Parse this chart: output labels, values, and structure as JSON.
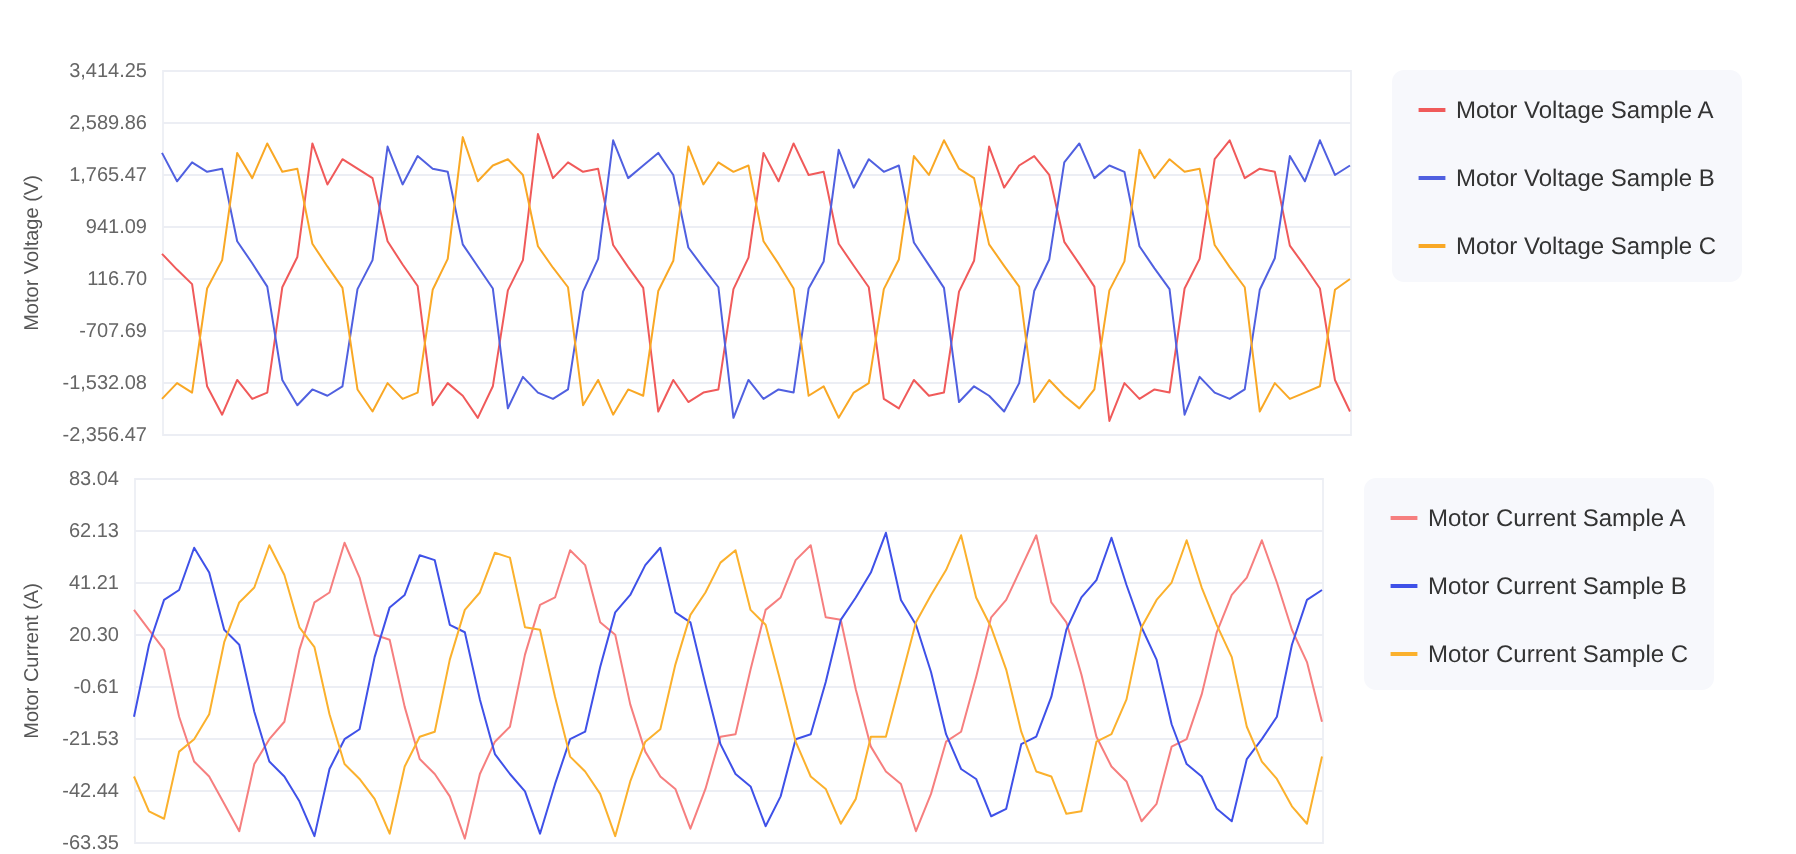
{
  "chart_data": [
    {
      "type": "line",
      "ylabel": "Motor Voltage (V)",
      "categories": [
        null,
        null,
        null,
        null,
        null,
        null,
        null,
        null,
        null,
        null,
        null,
        null,
        null,
        null,
        null,
        null,
        null,
        null,
        null,
        null,
        null,
        null,
        null,
        null,
        null,
        null,
        null,
        null,
        null,
        null,
        null,
        null,
        null,
        null,
        null,
        null,
        null,
        null,
        null,
        null,
        null,
        null,
        null,
        null,
        null,
        null,
        null,
        null,
        null,
        null,
        null,
        null,
        null,
        null,
        null,
        null,
        null,
        null,
        null,
        null,
        null,
        null,
        null,
        null,
        null,
        null,
        null,
        null,
        null,
        null,
        null,
        null,
        null,
        null,
        null,
        null,
        null,
        null,
        null,
        null
      ],
      "ylim": [
        -2356.47,
        3414.25
      ],
      "yticks": [
        {
          "value": -2356.47,
          "label": "-2,356.47"
        },
        {
          "value": -1532.08,
          "label": "-1,532.08"
        },
        -707.69,
        {
          "value": 116.7,
          "label": "116.70"
        },
        941.09,
        {
          "value": 1765.47,
          "label": "1,765.47"
        },
        {
          "value": 2589.86,
          "label": "2,589.86"
        },
        {
          "value": 3414.25,
          "label": "3,414.25"
        }
      ],
      "grid": "y",
      "legend": "right",
      "tick_labels": "y",
      "series": [
        {
          "name": "Motor Voltage Sample A",
          "color": "#f05a5a",
          "values": [
            500,
            250,
            20,
            -1600,
            -2050,
            -1500,
            -1800,
            -1700,
            -30,
            450,
            2250,
            1600,
            2000,
            1850,
            1700,
            700,
            330,
            -10,
            -1900,
            -1550,
            -1750,
            -2100,
            -1600,
            -80,
            400,
            2400,
            1700,
            1950,
            1800,
            1850,
            640,
            290,
            -40,
            -2000,
            -1500,
            -1850,
            -1700,
            -1650,
            -60,
            440,
            2100,
            1650,
            2250,
            1750,
            1800,
            660,
            310,
            -30,
            -1800,
            -1950,
            -1500,
            -1750,
            -1700,
            -100,
            390,
            2200,
            1550,
            1900,
            2050,
            1750,
            690,
            340,
            -20,
            -2150,
            -1550,
            -1800,
            -1650,
            -1700,
            -50,
            420,
            2000,
            2300,
            1700,
            1850,
            1800,
            630,
            300,
            -50,
            -1500,
            -2000
          ]
        },
        {
          "name": "Motor Voltage Sample B",
          "color": "#5060e0",
          "values": [
            2100,
            1650,
            1950,
            1800,
            1850,
            700,
            350,
            -20,
            -1500,
            -1900,
            -1650,
            -1750,
            -1600,
            -60,
            400,
            2200,
            1600,
            2050,
            1850,
            1800,
            650,
            300,
            -50,
            -1950,
            -1450,
            -1700,
            -1800,
            -1650,
            -100,
            420,
            2300,
            1700,
            1900,
            2100,
            1750,
            600,
            280,
            -30,
            -2100,
            -1500,
            -1800,
            -1650,
            -1700,
            -50,
            380,
            2150,
            1550,
            2000,
            1800,
            1900,
            680,
            320,
            -40,
            -1850,
            -1600,
            -1750,
            -2000,
            -1550,
            -90,
            410,
            1950,
            2250,
            1700,
            1900,
            1800,
            620,
            270,
            -60,
            -2050,
            -1450,
            -1700,
            -1800,
            -1650,
            -70,
            430,
            2050,
            1650,
            2300,
            1750,
            1900
          ]
        },
        {
          "name": "Motor Voltage Sample C",
          "color": "#f9a825",
          "values": [
            -1800,
            -1550,
            -1700,
            -50,
            400,
            2100,
            1700,
            2250,
            1800,
            1850,
            660,
            300,
            -40,
            -1650,
            -2000,
            -1550,
            -1800,
            -1700,
            -70,
            420,
            2350,
            1650,
            1900,
            2000,
            1750,
            620,
            280,
            -30,
            -1900,
            -1500,
            -2050,
            -1650,
            -1750,
            -90,
            390,
            2200,
            1600,
            1950,
            1800,
            1900,
            700,
            340,
            -50,
            -1750,
            -1600,
            -2100,
            -1700,
            -1550,
            -60,
            410,
            2050,
            1750,
            2300,
            1850,
            1700,
            650,
            310,
            -20,
            -1850,
            -1500,
            -1750,
            -1950,
            -1650,
            -80,
            380,
            2150,
            1700,
            2000,
            1800,
            1850,
            640,
            290,
            -30,
            -2000,
            -1550,
            -1800,
            -1700,
            -1600,
            -70,
            100
          ]
        }
      ]
    },
    {
      "type": "line",
      "ylabel": "Motor Current (A)",
      "categories": [
        null,
        null,
        null,
        null,
        null,
        null,
        null,
        null,
        null,
        null,
        null,
        null,
        null,
        null,
        null,
        null,
        null,
        null,
        null,
        null,
        null,
        null,
        null,
        null,
        null,
        null,
        null,
        null,
        null,
        null,
        null,
        null,
        null,
        null,
        null,
        null,
        null,
        null,
        null,
        null,
        null,
        null,
        null,
        null,
        null,
        null,
        null,
        null,
        null,
        null,
        null,
        null,
        null,
        null,
        null,
        null,
        null,
        null,
        null,
        null,
        null,
        null,
        null,
        null,
        null,
        null,
        null,
        null,
        null,
        null,
        null,
        null,
        null,
        null,
        null,
        null,
        null,
        null,
        null,
        null
      ],
      "ylim": [
        -63.35,
        83.04
      ],
      "yticks": [
        -63.35,
        -42.44,
        -21.53,
        -0.61,
        {
          "value": 20.3,
          "label": "20.30"
        },
        41.21,
        62.13,
        83.04
      ],
      "grid": "y",
      "legend": "right",
      "tick_labels": "y",
      "series": [
        {
          "name": "Motor Current Sample A",
          "color": "#f67f7f",
          "values": [
            30,
            22,
            14,
            -13,
            -31,
            -37,
            -48,
            -59,
            -32,
            -22,
            -15,
            14,
            33,
            37,
            57,
            43,
            20,
            18,
            -9,
            -30,
            -36,
            -45,
            -62,
            -36,
            -23,
            -17,
            12,
            32,
            35,
            54,
            48,
            25,
            20,
            -8,
            -27,
            -37,
            -42,
            -58,
            -42,
            -21,
            -20,
            6,
            30,
            35,
            50,
            56,
            27,
            26,
            -2,
            -25,
            -35,
            -40,
            -59,
            -44,
            -23,
            -19,
            3,
            27,
            34,
            47,
            60,
            33,
            25,
            4,
            -21,
            -33,
            -39,
            -55,
            -48,
            -25,
            -22,
            -4,
            21,
            36,
            43,
            58,
            41,
            22,
            9,
            -15
          ]
        },
        {
          "name": "Motor Current Sample B",
          "color": "#3f51e8",
          "values": [
            -13,
            16,
            34,
            38,
            55,
            45,
            22,
            16,
            -11,
            -31,
            -37,
            -47,
            -61,
            -34,
            -22,
            -18,
            11,
            31,
            36,
            52,
            50,
            24,
            21,
            -6,
            -28,
            -36,
            -43,
            -60,
            -40,
            -22,
            -19,
            7,
            29,
            36,
            48,
            55,
            29,
            25,
            0,
            -24,
            -36,
            -41,
            -57,
            -45,
            -22,
            -20,
            1,
            26,
            35,
            45,
            61,
            34,
            24,
            5,
            -20,
            -34,
            -38,
            -53,
            -50,
            -24,
            -21,
            -5,
            22,
            35,
            42,
            59,
            40,
            23,
            10,
            -16,
            -32,
            -37,
            -50,
            -55,
            -30,
            -22,
            -13,
            16,
            34,
            38
          ]
        },
        {
          "name": "Motor Current Sample C",
          "color": "#fbb12d",
          "values": [
            -37,
            -51,
            -54,
            -27,
            -22,
            -12,
            17,
            33,
            39,
            56,
            44,
            23,
            15,
            -12,
            -32,
            -38,
            -46,
            -60,
            -33,
            -21,
            -19,
            10,
            30,
            37,
            53,
            51,
            23,
            22,
            -5,
            -29,
            -35,
            -44,
            -61,
            -39,
            -23,
            -18,
            8,
            28,
            37,
            49,
            54,
            30,
            24,
            1,
            -23,
            -37,
            -42,
            -56,
            -46,
            -21,
            -21,
            2,
            25,
            36,
            46,
            60,
            35,
            23,
            6,
            -19,
            -35,
            -37,
            -52,
            -51,
            -23,
            -20,
            -6,
            23,
            34,
            41,
            58,
            39,
            24,
            11,
            -17,
            -31,
            -38,
            -49,
            -56,
            -29
          ]
        }
      ]
    }
  ]
}
